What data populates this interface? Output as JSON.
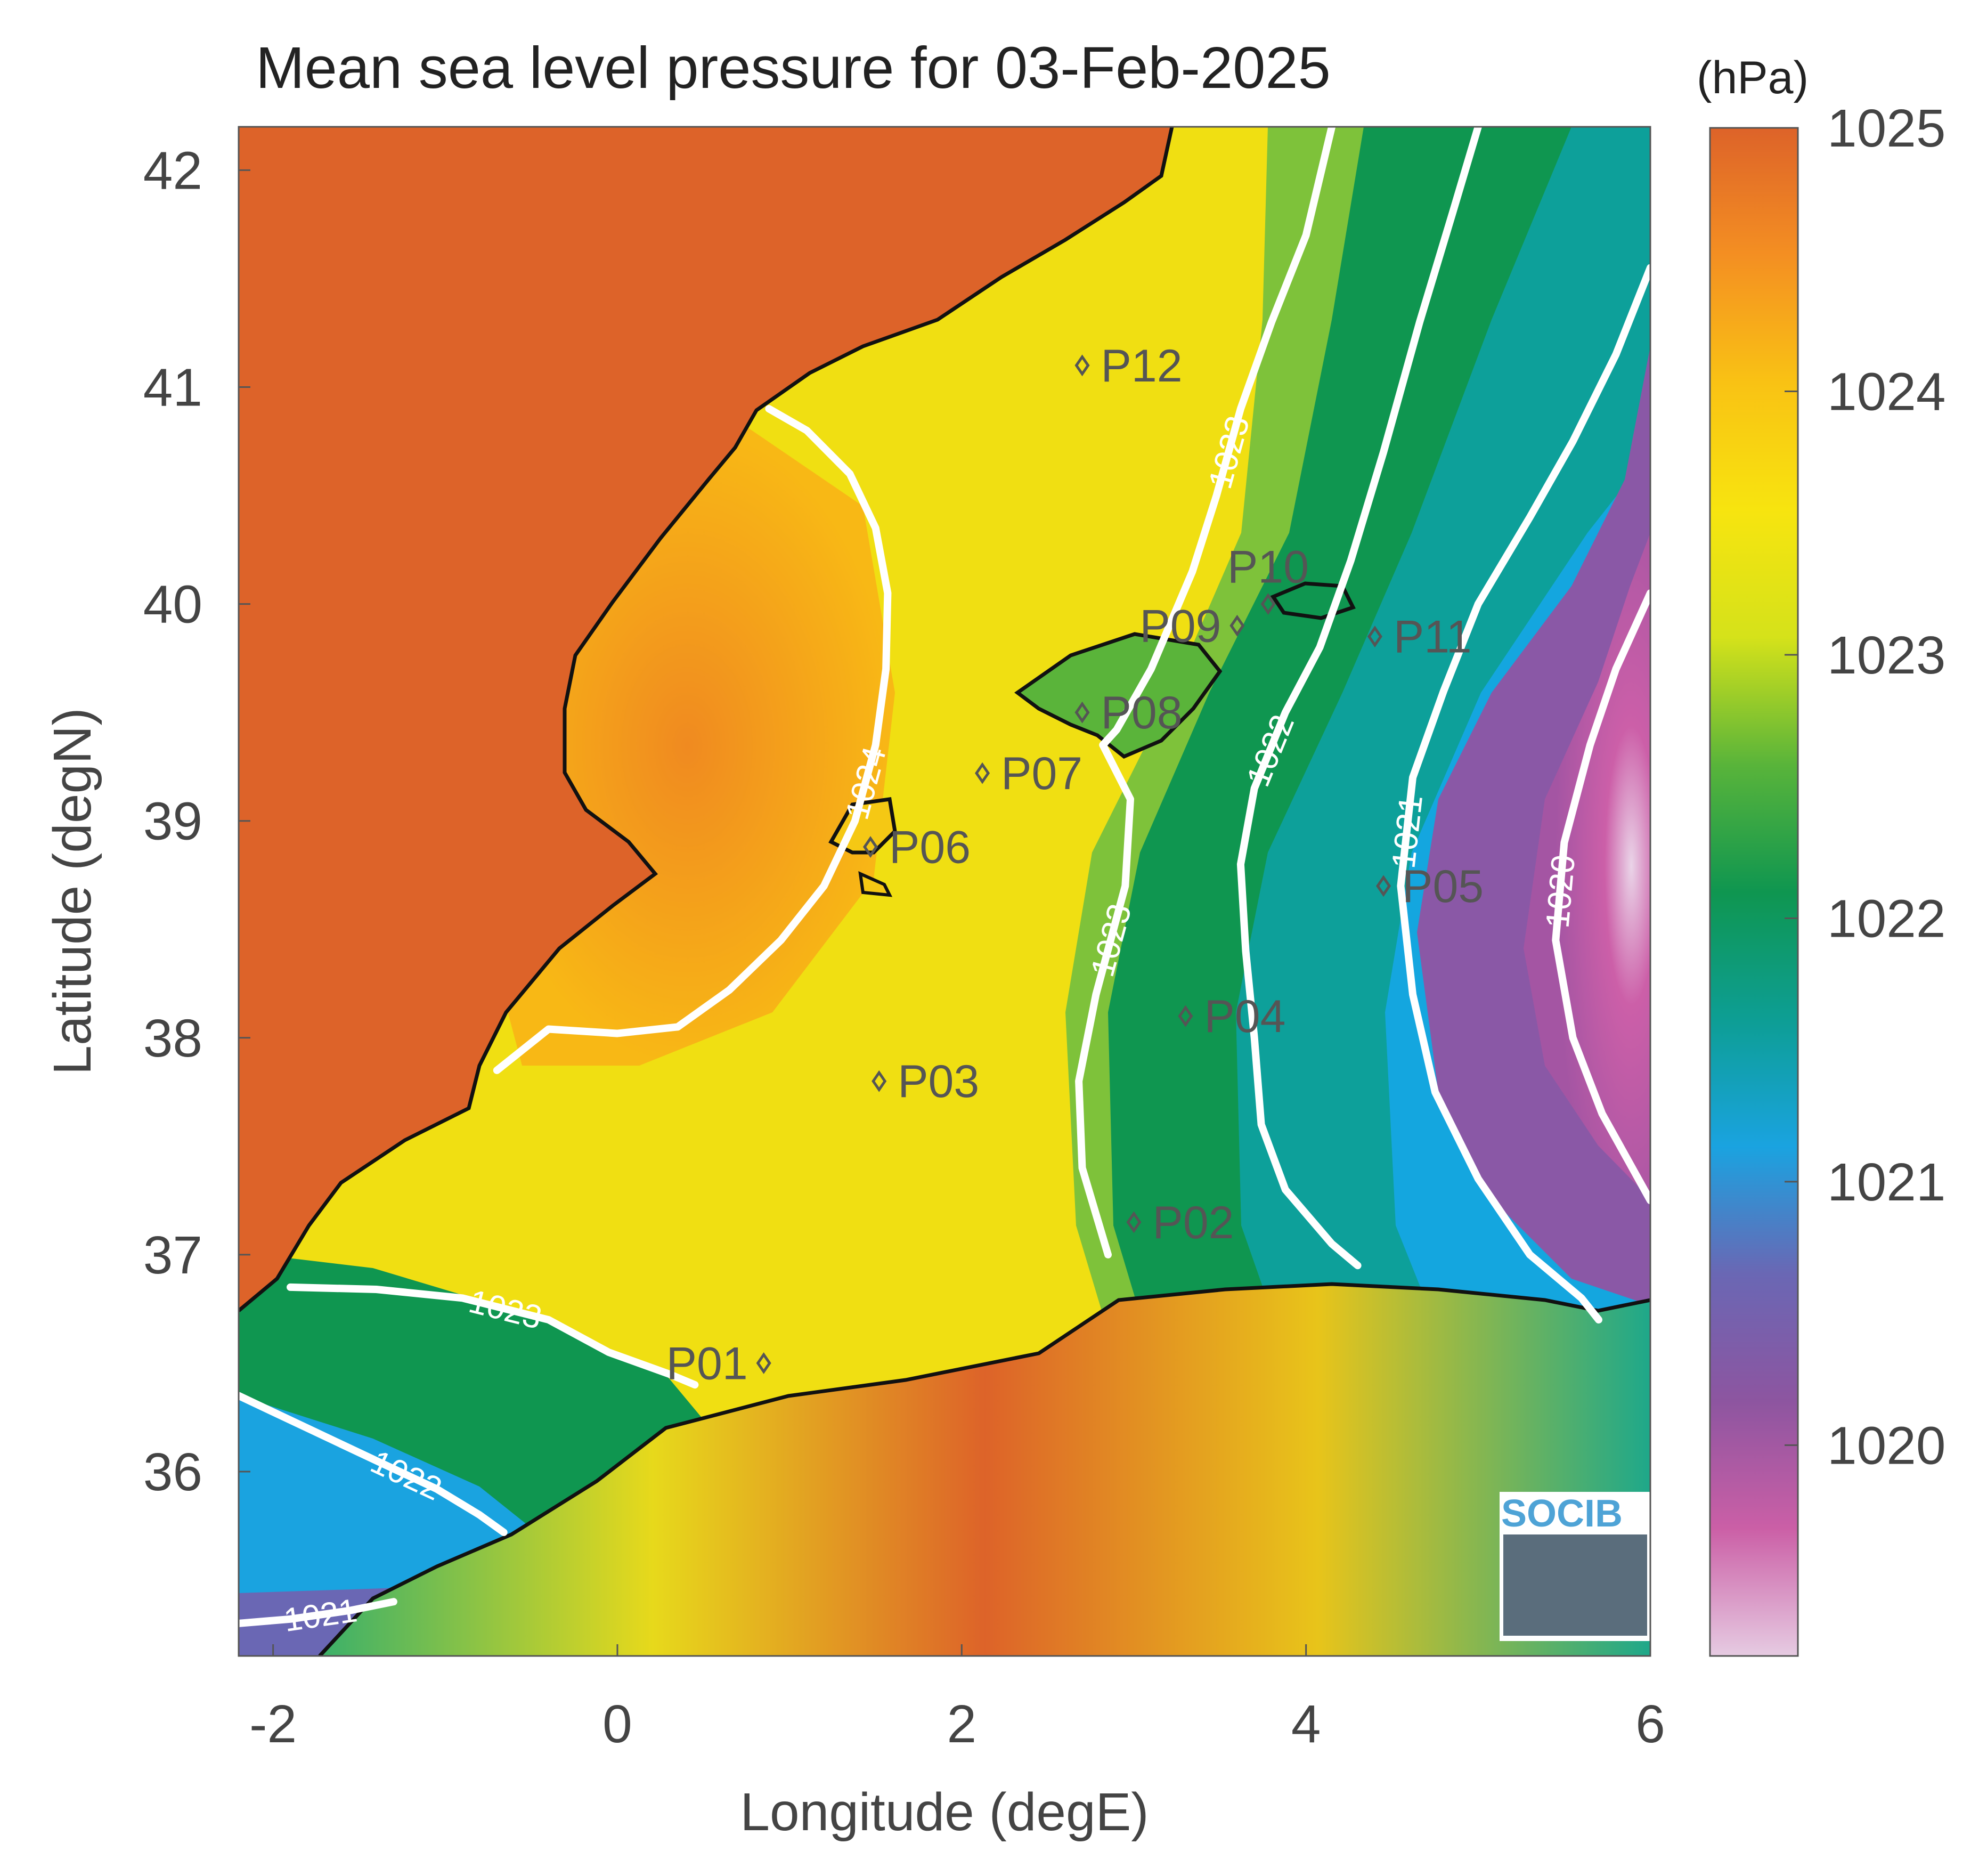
{
  "title": "Mean sea level pressure for 03-Feb-2025",
  "x_axis": {
    "label": "Longitude (degE)",
    "range": [
      -2.2,
      6.0
    ],
    "ticks": [
      -2,
      0,
      2,
      4,
      6
    ],
    "tick_labels": [
      "-2",
      "0",
      "2",
      "4",
      "6"
    ]
  },
  "y_axis": {
    "label": "Latitude (degN)",
    "range": [
      35.15,
      42.2
    ],
    "ticks": [
      36,
      37,
      38,
      39,
      40,
      41,
      42
    ],
    "tick_labels": [
      "36",
      "37",
      "38",
      "39",
      "40",
      "41",
      "42"
    ]
  },
  "colorbar": {
    "unit": "(hPa)",
    "range": [
      1019.2,
      1025.0
    ],
    "ticks": [
      1020,
      1021,
      1022,
      1023,
      1024,
      1025
    ],
    "tick_labels": [
      "1020",
      "1021",
      "1022",
      "1023",
      "1024",
      "1025"
    ],
    "colors": [
      "#e6cbe2",
      "#cb5fa6",
      "#8d55a0",
      "#6a67b4",
      "#1aa3e0",
      "#0d9e94",
      "#0f9650",
      "#59b43a",
      "#d5e21a",
      "#f7e40f",
      "#f9c214",
      "#f48f22",
      "#dd6329"
    ]
  },
  "logo": {
    "text": "SOCIB"
  },
  "points": [
    {
      "label": "P01",
      "lon": 0.85,
      "lat": 36.5,
      "label_side": "left"
    },
    {
      "label": "P02",
      "lon": 3.0,
      "lat": 37.15,
      "label_side": "right"
    },
    {
      "label": "P03",
      "lon": 1.52,
      "lat": 37.8,
      "label_side": "right"
    },
    {
      "label": "P04",
      "lon": 3.3,
      "lat": 38.1,
      "label_side": "right"
    },
    {
      "label": "P05",
      "lon": 4.45,
      "lat": 38.7,
      "label_side": "right"
    },
    {
      "label": "P06",
      "lon": 1.47,
      "lat": 38.88,
      "label_side": "right"
    },
    {
      "label": "P07",
      "lon": 2.12,
      "lat": 39.22,
      "label_side": "right"
    },
    {
      "label": "P08",
      "lon": 2.7,
      "lat": 39.5,
      "label_side": "right"
    },
    {
      "label": "P09",
      "lon": 3.6,
      "lat": 39.9,
      "label_side": "left"
    },
    {
      "label": "P10",
      "lon": 3.78,
      "lat": 40.0,
      "label_side": "above"
    },
    {
      "label": "P11",
      "lon": 4.4,
      "lat": 39.85,
      "label_side": "right"
    },
    {
      "label": "P12",
      "lon": 2.7,
      "lat": 41.1,
      "label_side": "right"
    }
  ],
  "contours": [
    {
      "level": 1024,
      "label": "1024",
      "coords": [
        [
          0.88,
          40.9
        ],
        [
          1.1,
          40.8
        ],
        [
          1.35,
          40.6
        ],
        [
          1.5,
          40.35
        ],
        [
          1.57,
          40.05
        ],
        [
          1.56,
          39.7
        ],
        [
          1.5,
          39.35
        ],
        [
          1.38,
          39.0
        ],
        [
          1.2,
          38.7
        ],
        [
          0.95,
          38.45
        ],
        [
          0.65,
          38.22
        ],
        [
          0.35,
          38.05
        ],
        [
          0.0,
          38.02
        ],
        [
          -0.4,
          38.04
        ],
        [
          -0.7,
          37.85
        ]
      ]
    },
    {
      "level": 1023,
      "label": "1023",
      "coords": [
        [
          4.15,
          42.2
        ],
        [
          4.0,
          41.7
        ],
        [
          3.8,
          41.3
        ],
        [
          3.62,
          40.9
        ],
        [
          3.48,
          40.5
        ],
        [
          3.34,
          40.15
        ],
        [
          3.1,
          39.7
        ],
        [
          2.9,
          39.42
        ],
        [
          2.82,
          39.35
        ]
      ]
    },
    {
      "level": 1023,
      "label": "1023",
      "coords": [
        [
          2.82,
          39.35
        ],
        [
          2.98,
          39.1
        ],
        [
          2.95,
          38.7
        ],
        [
          2.78,
          38.2
        ],
        [
          2.68,
          37.8
        ],
        [
          2.7,
          37.4
        ],
        [
          2.85,
          37.0
        ]
      ]
    },
    {
      "level": 1023,
      "label": "1023",
      "coords": [
        [
          -1.9,
          36.85
        ],
        [
          -1.4,
          36.84
        ],
        [
          -0.9,
          36.8
        ],
        [
          -0.4,
          36.7
        ],
        [
          -0.05,
          36.55
        ],
        [
          0.3,
          36.45
        ],
        [
          0.45,
          36.4
        ]
      ]
    },
    {
      "level": 1022,
      "label": "1022",
      "coords": [
        [
          5.0,
          42.2
        ],
        [
          4.85,
          41.8
        ],
        [
          4.66,
          41.3
        ],
        [
          4.45,
          40.7
        ],
        [
          4.26,
          40.2
        ],
        [
          4.08,
          39.8
        ],
        [
          3.88,
          39.5
        ],
        [
          3.7,
          39.15
        ],
        [
          3.62,
          38.8
        ],
        [
          3.65,
          38.4
        ],
        [
          3.7,
          38.0
        ],
        [
          3.74,
          37.6
        ],
        [
          3.88,
          37.3
        ],
        [
          4.15,
          37.05
        ],
        [
          4.3,
          36.95
        ]
      ]
    },
    {
      "level": 1022,
      "label": "1022",
      "coords": [
        [
          -2.2,
          36.35
        ],
        [
          -1.8,
          36.2
        ],
        [
          -1.4,
          36.05
        ],
        [
          -1.05,
          35.92
        ],
        [
          -0.8,
          35.8
        ],
        [
          -0.66,
          35.72
        ]
      ]
    },
    {
      "level": 1021,
      "label": "1021",
      "coords": [
        [
          6.0,
          41.55
        ],
        [
          5.8,
          41.15
        ],
        [
          5.55,
          40.75
        ],
        [
          5.3,
          40.4
        ],
        [
          5.0,
          40.0
        ],
        [
          4.8,
          39.6
        ],
        [
          4.62,
          39.2
        ],
        [
          4.55,
          38.7
        ],
        [
          4.62,
          38.2
        ],
        [
          4.75,
          37.75
        ],
        [
          5.0,
          37.35
        ],
        [
          5.3,
          37.0
        ],
        [
          5.6,
          36.8
        ],
        [
          5.7,
          36.7
        ]
      ]
    },
    {
      "level": 1021,
      "label": "1021",
      "coords": [
        [
          -2.2,
          35.3
        ],
        [
          -1.9,
          35.32
        ],
        [
          -1.55,
          35.36
        ],
        [
          -1.3,
          35.4
        ]
      ]
    },
    {
      "level": 1020,
      "label": "1020",
      "coords": [
        [
          6.0,
          40.05
        ],
        [
          5.8,
          39.7
        ],
        [
          5.65,
          39.35
        ],
        [
          5.5,
          38.9
        ],
        [
          5.45,
          38.45
        ],
        [
          5.55,
          38.0
        ],
        [
          5.72,
          37.65
        ],
        [
          6.0,
          37.25
        ]
      ]
    }
  ]
}
